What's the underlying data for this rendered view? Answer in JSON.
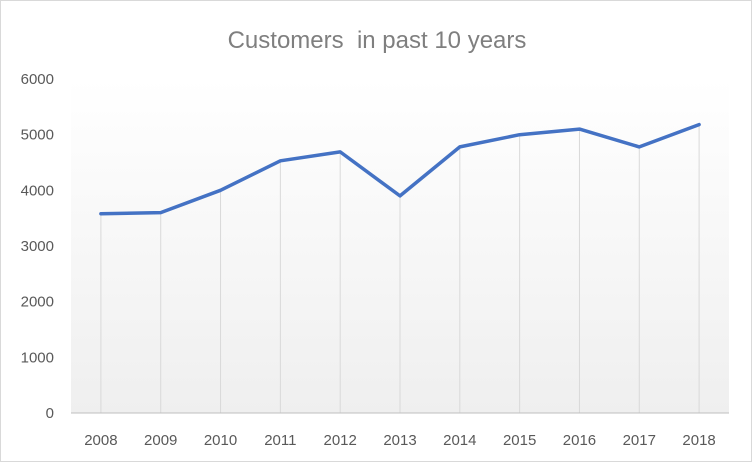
{
  "chart_data": {
    "type": "line",
    "title": "Customers  in past 10 years",
    "xlabel": "",
    "ylabel": "",
    "categories": [
      "2008",
      "2009",
      "2010",
      "2011",
      "2012",
      "2013",
      "2014",
      "2015",
      "2016",
      "2017",
      "2018"
    ],
    "series": [
      {
        "values": [
          3580,
          3600,
          4000,
          4530,
          4690,
          3900,
          4780,
          5000,
          5100,
          4780,
          5180
        ]
      }
    ],
    "y_ticks": [
      "0",
      "1000",
      "2000",
      "3000",
      "4000",
      "5000",
      "6000"
    ],
    "ylim": [
      0,
      6000
    ],
    "grid": "vertical",
    "legend": "none",
    "colors": {
      "series": "#4472c4",
      "grid": "#d9d9d9",
      "text": "#595959",
      "title": "#7f7f7f"
    }
  }
}
